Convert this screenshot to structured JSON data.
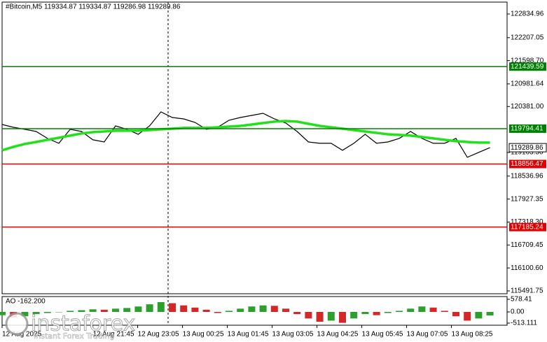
{
  "chart_data": {
    "type": "line",
    "header": "#Bitcoin,M5  119334.87 119334.87 119286.98 119289.86",
    "series": [
      {
        "name": "Close",
        "color": "#000000",
        "values": [
          119905,
          119831,
          119776,
          119720,
          119535,
          119405,
          119776,
          119720,
          119498,
          119442,
          119868,
          119776,
          119646,
          119868,
          120239,
          120091,
          120054,
          119961,
          119776,
          119831,
          120017,
          120091,
          120146,
          120202,
          120054,
          119943,
          119720,
          119442,
          119405,
          119405,
          119220,
          119405,
          119646,
          119405,
          119442,
          119535,
          119720,
          119535,
          119405,
          119405,
          119535,
          119035,
          119164,
          119290
        ]
      },
      {
        "name": "MA",
        "color": "#22e01c",
        "values": [
          119220,
          119313,
          119387,
          119442,
          119498,
          119553,
          119609,
          119665,
          119702,
          119720,
          119739,
          119739,
          119739,
          119757,
          119776,
          119794,
          119813,
          119813,
          119813,
          119831,
          119850,
          119868,
          119905,
          119943,
          119980,
          119998,
          119980,
          119924,
          119868,
          119831,
          119794,
          119757,
          119720,
          119683,
          119646,
          119628,
          119609,
          119572,
          119535,
          119498,
          119461,
          119442,
          119424,
          119424
        ]
      }
    ],
    "ylim": [
      115417,
      123150
    ],
    "yticks": [
      122834.96,
      122207.05,
      {
        "value": 121598.7,
        "label": "121598.70"
      },
      120981.64,
      {
        "value": 120381,
        "label": "120381.00"
      },
      {
        "value": 119163.3,
        "label": "119163.30"
      },
      118536.96,
      117927.35,
      {
        "value": 117318.3,
        "label": "117318.30"
      },
      116709.45,
      {
        "value": 116100.6,
        "label": "116100.60"
      },
      115491.75
    ],
    "levels": [
      {
        "value": 121439.59,
        "color": "#008000"
      },
      {
        "value": 119794.41,
        "color": "#008000"
      },
      {
        "value": 118856.47,
        "color": "#e00000"
      },
      {
        "value": 117185.24,
        "color": "#e00000"
      }
    ],
    "last_price": 119289.86,
    "xticks": [
      {
        "value": 0,
        "label": "12 Aug 2025"
      },
      {
        "value": 8.0,
        "label": "12 Aug 21:45"
      },
      {
        "value": 11.95,
        "label": "12 Aug 23:05"
      },
      {
        "value": 15.9,
        "label": "13 Aug 00:25"
      },
      {
        "value": 19.85,
        "label": "13 Aug 01:45"
      },
      {
        "value": 23.8,
        "label": "13 Aug 03:05"
      },
      {
        "value": 27.75,
        "label": "13 Aug 04:25"
      },
      {
        "value": 31.7,
        "label": "13 Aug 05:45"
      },
      {
        "value": 35.65,
        "label": "13 Aug 07:05"
      },
      {
        "value": 39.6,
        "label": "13 Aug 08:25"
      }
    ],
    "ao": {
      "label": "AO -162.200",
      "values": [
        -150,
        -250,
        -200,
        -100,
        -50,
        0,
        50,
        80,
        120,
        100,
        150,
        180,
        250,
        350,
        450,
        400,
        300,
        200,
        100,
        -50,
        50,
        150,
        250,
        300,
        280,
        150,
        -100,
        -300,
        -450,
        -400,
        -500,
        -300,
        -100,
        -150,
        -50,
        50,
        150,
        250,
        200,
        50,
        -200,
        -400,
        -300,
        -162
      ],
      "up_color": "#2ca02c",
      "down_color": "#d62728",
      "ylim": [
        -610,
        706
      ],
      "yticks": [
        578.41,
        {
          "value": 0,
          "label": "0.00"
        },
        -513.111
      ]
    },
    "watermark": {
      "brand": "instaforex",
      "slogan": "Instant Forex Trading"
    }
  }
}
